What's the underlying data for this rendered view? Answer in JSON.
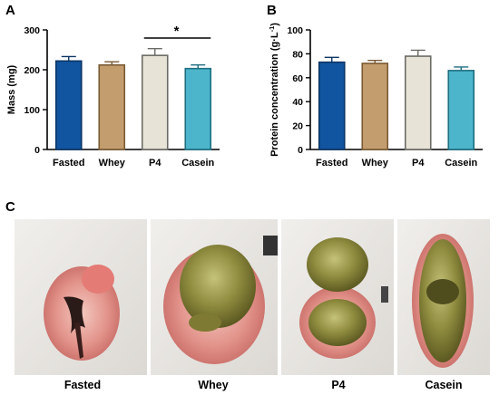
{
  "panels": {
    "a": "A",
    "b": "B",
    "c": "C"
  },
  "colors": {
    "Fasted": "#1155a0",
    "Whey": "#c49d6e",
    "P4": "#e7e3d6",
    "Casein": "#4cb5cc",
    "Fasted_edge": "#0b3563",
    "Whey_edge": "#7a5a33",
    "P4_edge": "#6b6b66",
    "Casein_edge": "#1f6f80"
  },
  "chart_data": [
    {
      "type": "bar",
      "panel": "A",
      "categories": [
        "Fasted",
        "Whey",
        "P4",
        "Casein"
      ],
      "values": [
        222,
        212,
        236,
        203
      ],
      "errors": [
        11,
        8,
        17,
        9
      ],
      "ylabel": "Mass (mg)",
      "xlabel": "",
      "ylim": [
        0,
        300
      ],
      "yticks": [
        "0",
        "100",
        "200",
        "300"
      ],
      "significance": {
        "from": "P4",
        "to": "Casein",
        "label": "*"
      },
      "grid": false
    },
    {
      "type": "bar",
      "panel": "B",
      "categories": [
        "Fasted",
        "Whey",
        "P4",
        "Casein"
      ],
      "values": [
        73,
        72,
        78,
        66
      ],
      "errors": [
        4,
        2.5,
        5,
        3
      ],
      "ylabel_main": "Protein concentration (g·L",
      "ylabel_sup": "-1",
      "ylabel_end": ")",
      "xlabel": "",
      "ylim": [
        0,
        100
      ],
      "yticks": [
        "0",
        "20",
        "40",
        "60",
        "80",
        "100"
      ],
      "grid": false
    }
  ],
  "photos": {
    "labels": [
      "Fasted",
      "Whey",
      "P4",
      "Casein"
    ]
  }
}
